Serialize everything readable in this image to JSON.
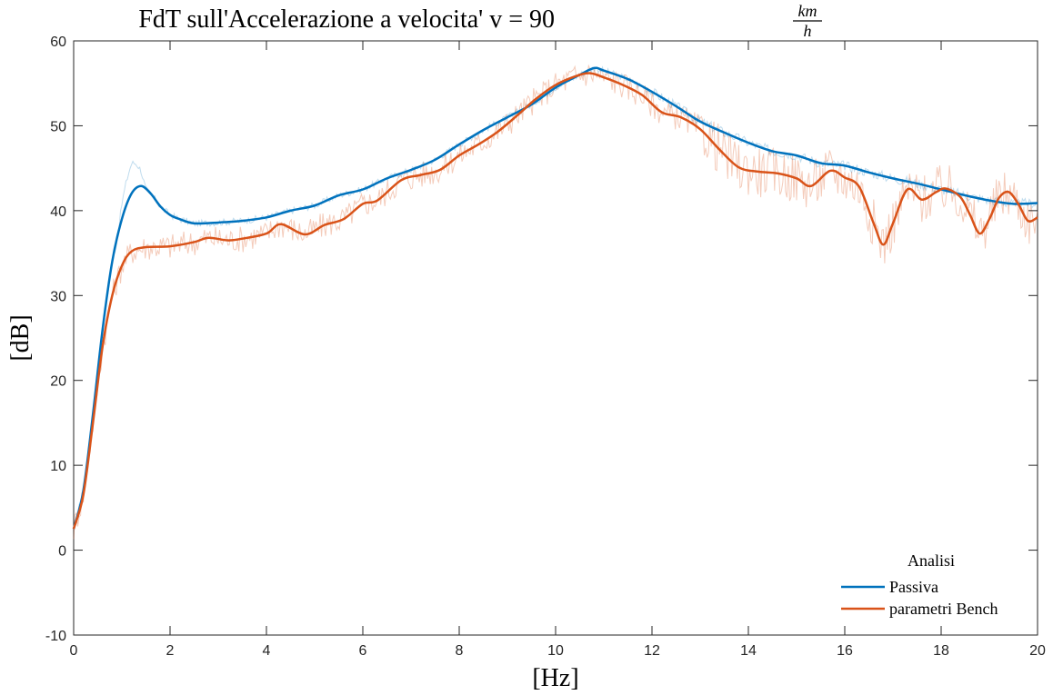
{
  "chart_data": {
    "type": "line",
    "title": "FdT sull'Accelerazione a velocita' v = 90",
    "title_fraction_num": "km",
    "title_fraction_den": "h",
    "xlabel": "[Hz]",
    "ylabel": "[dB]",
    "xlim": [
      0,
      20
    ],
    "ylim": [
      -10,
      60
    ],
    "xticks": [
      0,
      2,
      4,
      6,
      8,
      10,
      12,
      14,
      16,
      18,
      20
    ],
    "yticks": [
      -10,
      0,
      10,
      20,
      30,
      40,
      50,
      60
    ],
    "grid": false,
    "box": true,
    "legend": {
      "title": "Analisi",
      "location": "bottom-right",
      "boxed": false
    },
    "series": [
      {
        "name": "Passiva",
        "color": "#0072BD",
        "x": [
          0,
          0.2,
          0.4,
          0.6,
          0.8,
          1.0,
          1.2,
          1.4,
          1.6,
          1.8,
          2.0,
          2.2,
          2.5,
          3.0,
          3.5,
          4.0,
          4.5,
          5.0,
          5.5,
          6.0,
          6.5,
          7.0,
          7.5,
          8.0,
          8.5,
          9.0,
          9.5,
          10.0,
          10.5,
          10.8,
          11.0,
          11.5,
          12.0,
          12.5,
          13.0,
          13.5,
          14.0,
          14.5,
          15.0,
          15.5,
          16.0,
          16.5,
          17.0,
          17.5,
          18.0,
          18.5,
          19.0,
          19.5,
          20.0
        ],
        "y": [
          2.5,
          7,
          16,
          26,
          34,
          39,
          42,
          42.9,
          42,
          40.5,
          39.5,
          39,
          38.5,
          38.6,
          38.8,
          39.2,
          40,
          40.6,
          41.8,
          42.5,
          43.8,
          44.8,
          46,
          47.8,
          49.5,
          51,
          52.5,
          54.5,
          56,
          56.8,
          56.5,
          55.5,
          54,
          52.3,
          50.5,
          49.2,
          48,
          47,
          46.5,
          45.6,
          45.3,
          44.5,
          43.8,
          43.2,
          42.5,
          41.8,
          41.2,
          40.8,
          40.9
        ]
      },
      {
        "name": "parametri Bench",
        "color": "#D95319",
        "x": [
          0,
          0.2,
          0.4,
          0.6,
          0.8,
          1.0,
          1.2,
          1.5,
          2.0,
          2.5,
          2.8,
          3.2,
          3.5,
          4.0,
          4.3,
          4.8,
          5.2,
          5.6,
          6.0,
          6.3,
          6.8,
          7.2,
          7.6,
          8.0,
          8.4,
          8.8,
          9.2,
          9.6,
          10.0,
          10.4,
          10.7,
          11.0,
          11.4,
          11.8,
          12.2,
          12.6,
          13.0,
          13.4,
          13.8,
          14.2,
          14.6,
          15.0,
          15.3,
          15.7,
          16.0,
          16.3,
          16.6,
          16.8,
          17.0,
          17.3,
          17.6,
          17.9,
          18.1,
          18.4,
          18.6,
          18.8,
          19.0,
          19.2,
          19.4,
          19.6,
          19.8,
          20.0
        ],
        "y": [
          2.5,
          6.5,
          15,
          24,
          30,
          33.5,
          35.2,
          35.7,
          35.8,
          36.3,
          36.8,
          36.5,
          36.7,
          37.3,
          38.4,
          37.2,
          38.3,
          39,
          40.8,
          41.2,
          43.6,
          44.2,
          44.8,
          46.5,
          47.8,
          49.3,
          51.2,
          53.2,
          54.8,
          55.8,
          56.2,
          55.7,
          54.8,
          53.6,
          51.6,
          51,
          49.6,
          47.2,
          45.1,
          44.6,
          44.4,
          43.8,
          42.9,
          44.7,
          43.9,
          42.8,
          38.5,
          36,
          38.5,
          42.5,
          41.3,
          42.2,
          42.6,
          41.6,
          39.5,
          37.3,
          39,
          41.5,
          42.2,
          40.8,
          38.8,
          39.2
        ]
      }
    ]
  }
}
